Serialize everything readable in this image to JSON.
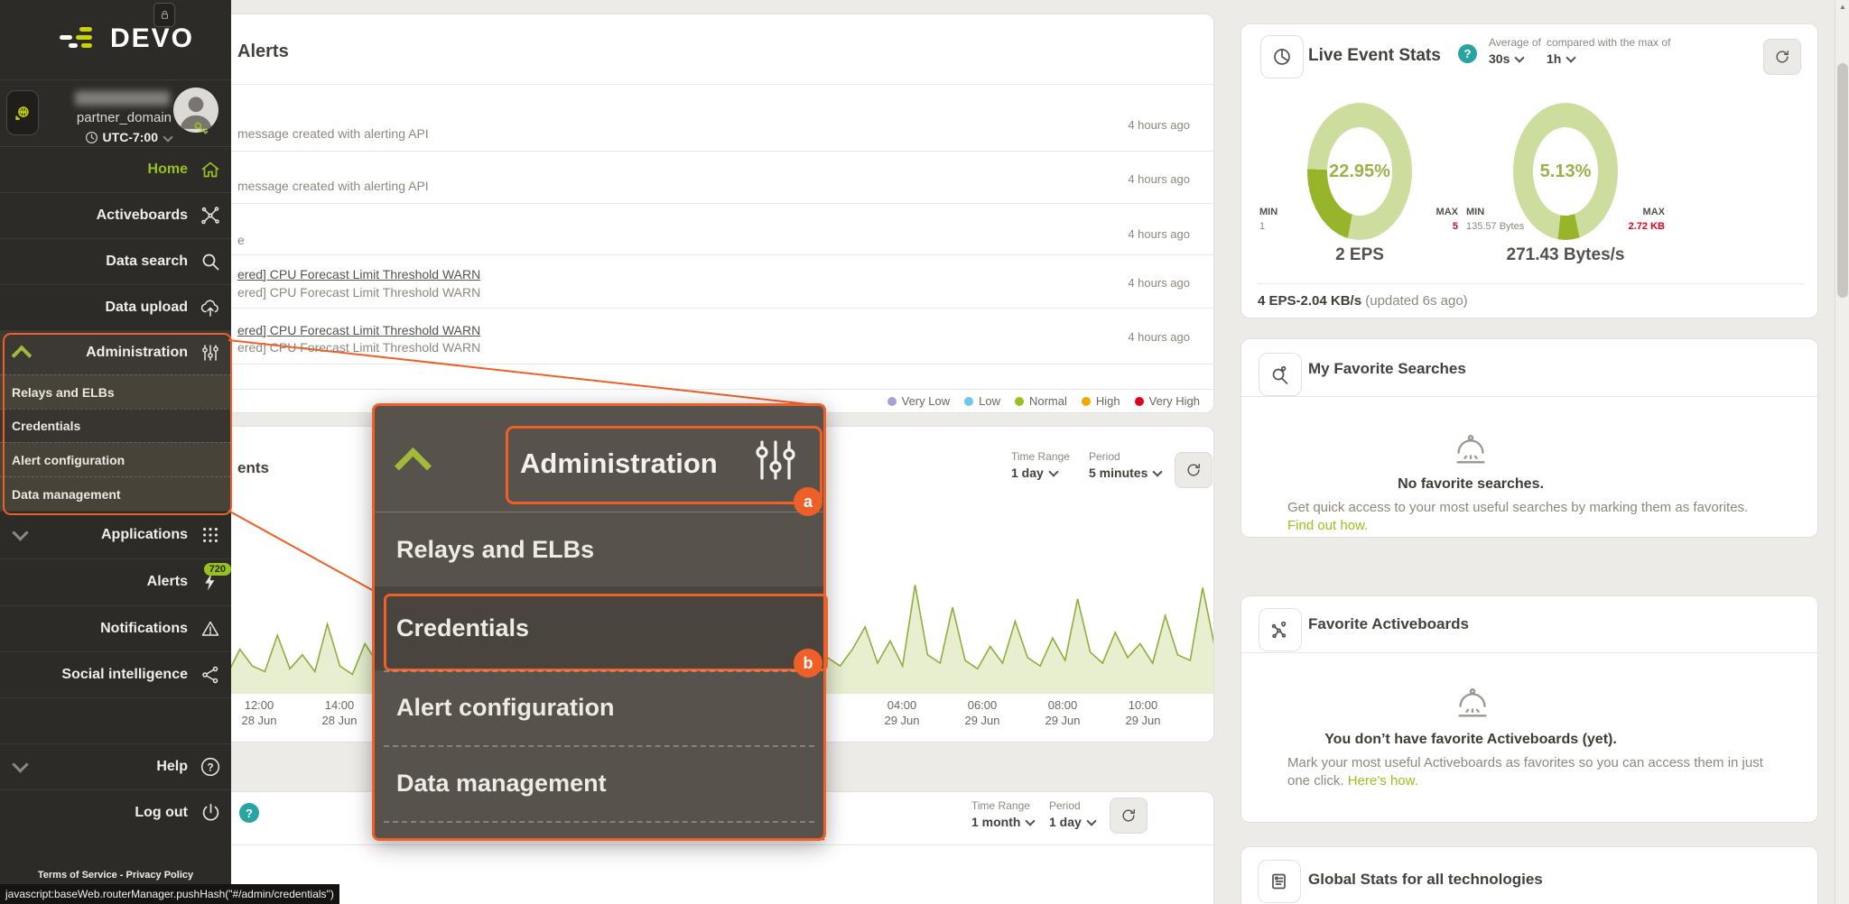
{
  "status_bar": "javascript:baseWeb.routerManager.pushHash(\"#/admin/credentials\")",
  "colors": {
    "accent_orange": "#ef5f28",
    "brand_green": "#97c11f",
    "donut_light": "#cddd9e",
    "donut_dark": "#97b52a",
    "alert_red": "#e2001a",
    "help_teal": "#2aa3a3",
    "sidebar_bg": "#2d2b27",
    "popup_bg": "#57524c",
    "chart_line": "#8fae3c",
    "chart_fill": "#e7efd0"
  },
  "sidebar": {
    "logo_text": "DEVO",
    "user": {
      "domain": "partner_domain",
      "timezone": "UTC-7:00"
    },
    "items": [
      {
        "label": "Home"
      },
      {
        "label": "Activeboards"
      },
      {
        "label": "Data search"
      },
      {
        "label": "Data upload"
      },
      {
        "label": "Administration"
      },
      {
        "label": "Applications"
      },
      {
        "label": "Alerts",
        "badge": "720"
      },
      {
        "label": "Notifications"
      },
      {
        "label": "Social intelligence"
      },
      {
        "label": "Help"
      },
      {
        "label": "Log out"
      }
    ],
    "admin_submenu": [
      "Relays and ELBs",
      "Credentials",
      "Alert configuration",
      "Data management"
    ],
    "footer_terms": "Terms of Service",
    "footer_sep": "-",
    "footer_privacy": "Privacy Policy"
  },
  "popup": {
    "title": "Administration",
    "items": [
      "Relays and ELBs",
      "Credentials",
      "Alert configuration",
      "Data management"
    ],
    "badge_a": "a",
    "badge_b": "b"
  },
  "alerts_panel": {
    "title": "Alerts",
    "rows": [
      {
        "text": "message created with alerting API",
        "time": "4 hours ago"
      },
      {
        "text": "message created with alerting API",
        "time": "4 hours ago"
      },
      {
        "text": "e",
        "time": "4 hours ago"
      },
      {
        "link": "ered] CPU Forecast Limit Threshold WARN",
        "text": "ered] CPU Forecast Limit Threshold WARN",
        "time": "4 hours ago"
      },
      {
        "link": "ered] CPU Forecast Limit Threshold WARN",
        "text": "ered] CPU Forecast Limit Threshold WARN",
        "time": "4 hours ago"
      }
    ],
    "legend": [
      {
        "label": "Very Low",
        "color": "#aaa0d5"
      },
      {
        "label": "Low",
        "color": "#6fc7f0"
      },
      {
        "label": "Normal",
        "color": "#97c11f"
      },
      {
        "label": "High",
        "color": "#f2a900"
      },
      {
        "label": "Very High",
        "color": "#e2001a"
      }
    ]
  },
  "events_chart": {
    "partial_title": "ents",
    "time_range_label": "Time Range",
    "time_range_value": "1 day",
    "period_label": "Period",
    "period_value": "5 minutes"
  },
  "bottom_panel": {
    "help_badge": "?",
    "time_range_label": "Time Range",
    "time_range_value": "1 month",
    "period_label": "Period",
    "period_value": "1 day"
  },
  "live_event_stats": {
    "title": "Live Event Stats",
    "help_badge": "?",
    "avg_label": "Average of",
    "avg_value": "30s",
    "cmp_label": "compared with the max of",
    "cmp_value": "1h",
    "donuts": [
      {
        "pct": "22.95%",
        "seg_start_deg": 190,
        "min_label": "MIN",
        "min_value": "1",
        "max_label": "MAX",
        "max_value": "5",
        "caption": "2 EPS"
      },
      {
        "pct": "5.13%",
        "seg_start_deg": 168,
        "min_label": "MIN",
        "min_value": "135.57 Bytes",
        "max_label": "MAX",
        "max_value": "2.72 KB",
        "caption": "271.43 Bytes/s"
      }
    ],
    "summary_bold": "4 EPS-2.04 KB/s",
    "summary_gray": "(updated 6s ago)"
  },
  "favorite_searches": {
    "title": "My Favorite Searches",
    "empty_title": "No favorite searches.",
    "body": "Get quick access to your most useful searches by marking them as favorites.",
    "link": "Find out how."
  },
  "favorite_activeboards": {
    "title": "Favorite Activeboards",
    "empty_title": "You don’t have favorite Activeboards (yet).",
    "body": "Mark your most useful Activeboards as favorites so you can access them in just",
    "body2": "one click.",
    "link": "Here’s how."
  },
  "global_stats": {
    "title": "Global Stats for all technologies"
  },
  "chart_data": {
    "type": "area",
    "title": "",
    "xlabel": "",
    "ylabel": "",
    "grid": false,
    "legend_position": "none",
    "ylim": [
      0,
      4
    ],
    "x_ticks": [
      {
        "time": "12:00",
        "date": "28 Jun"
      },
      {
        "time": "14:00",
        "date": "28 Jun"
      },
      {
        "time": "04:00",
        "date": "29 Jun"
      },
      {
        "time": "06:00",
        "date": "29 Jun"
      },
      {
        "time": "08:00",
        "date": "29 Jun"
      },
      {
        "time": "10:00",
        "date": "29 Jun"
      }
    ],
    "series": [
      {
        "name": "events",
        "values": [
          0.4,
          0.6,
          0.5,
          1.1,
          0.7,
          0.5,
          2.6,
          0.9,
          0.5,
          1.4,
          0.8,
          0.6,
          1.9,
          0.7,
          1.2,
          0.6,
          2.3,
          0.8,
          0.5,
          1.6,
          0.9,
          3.1,
          0.7,
          0.5,
          1.2,
          0.8,
          1.7,
          0.6,
          2.8,
          0.9,
          0.6,
          1.3,
          0.7,
          2.0,
          0.8,
          1.5,
          0.6,
          2.4,
          0.9,
          0.7,
          1.8,
          0.6,
          3.4,
          1.0,
          0.7,
          1.3,
          2.1,
          0.8,
          1.6,
          0.7,
          2.7,
          1.0,
          0.8,
          1.9,
          0.7,
          3.0,
          1.1,
          0.8,
          1.4,
          2.2,
          0.9,
          1.7,
          0.8,
          3.7,
          1.2,
          0.9,
          2.9,
          1.0,
          0.7,
          1.5,
          0.9,
          2.4,
          1.1,
          0.8,
          1.8,
          1.0,
          3.2,
          1.3,
          0.9,
          2.0,
          1.1,
          1.6,
          0.9,
          2.6,
          1.2,
          1.0,
          3.6,
          1.4
        ]
      }
    ]
  }
}
